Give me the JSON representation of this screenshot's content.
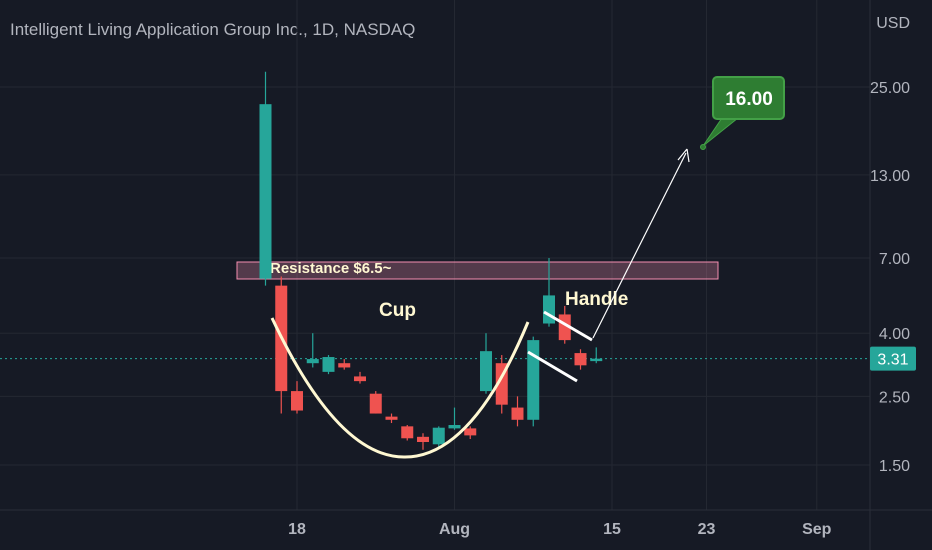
{
  "title": "Intelligent Living Application Group Inc., 1D, NASDAQ",
  "currency": "USD",
  "price_badge": "3.31",
  "target_label": "16.00",
  "annotations": {
    "resistance": "Resistance $6.5~",
    "cup": "Cup",
    "handle": "Handle"
  },
  "colors": {
    "background": "#161a25",
    "up": "#26a69a",
    "down": "#ef5350",
    "grid": "#242832",
    "axis_text": "#b2b5be",
    "annotation": "#fff8d2",
    "resistance_fill": "#f48fb1",
    "target_bg": "#2e7d32"
  },
  "chart_data": {
    "type": "candlestick",
    "title": "Intelligent Living Application Group Inc., 1D, NASDAQ",
    "y_scale": "log",
    "y_ticks": [
      "25.00",
      "13.00",
      "7.00",
      "4.00",
      "2.50",
      "1.50"
    ],
    "x_ticks": [
      "18",
      "Aug",
      "15",
      "23",
      "Sep"
    ],
    "last_price": 3.31,
    "resistance_price": 6.5,
    "target_price": 16.0,
    "candles": [
      {
        "date": "2022-07-14",
        "open": 6.0,
        "high": 28.0,
        "low": 5.7,
        "close": 22.0
      },
      {
        "date": "2022-07-15",
        "open": 5.7,
        "high": 6.1,
        "low": 2.2,
        "close": 2.6
      },
      {
        "date": "2022-07-18",
        "open": 2.6,
        "high": 2.8,
        "low": 2.2,
        "close": 2.25
      },
      {
        "date": "2022-07-19",
        "open": 3.2,
        "high": 4.0,
        "low": 3.1,
        "close": 3.3
      },
      {
        "date": "2022-07-20",
        "open": 3.0,
        "high": 3.4,
        "low": 2.95,
        "close": 3.35
      },
      {
        "date": "2022-07-21",
        "open": 3.2,
        "high": 3.3,
        "low": 3.05,
        "close": 3.1
      },
      {
        "date": "2022-07-22",
        "open": 2.9,
        "high": 3.0,
        "low": 2.75,
        "close": 2.8
      },
      {
        "date": "2022-07-25",
        "open": 2.55,
        "high": 2.6,
        "low": 2.2,
        "close": 2.2
      },
      {
        "date": "2022-07-26",
        "open": 2.15,
        "high": 2.2,
        "low": 2.05,
        "close": 2.1
      },
      {
        "date": "2022-07-27",
        "open": 2.0,
        "high": 2.02,
        "low": 1.8,
        "close": 1.83
      },
      {
        "date": "2022-07-28",
        "open": 1.85,
        "high": 1.9,
        "low": 1.68,
        "close": 1.78
      },
      {
        "date": "2022-07-29",
        "open": 1.75,
        "high": 2.0,
        "low": 1.7,
        "close": 1.98
      },
      {
        "date": "2022-08-01",
        "open": 1.97,
        "high": 2.3,
        "low": 1.95,
        "close": 2.02
      },
      {
        "date": "2022-08-02",
        "open": 1.97,
        "high": 2.0,
        "low": 1.82,
        "close": 1.87
      },
      {
        "date": "2022-08-03",
        "open": 2.6,
        "high": 4.0,
        "low": 2.55,
        "close": 3.5
      },
      {
        "date": "2022-08-04",
        "open": 3.2,
        "high": 3.4,
        "low": 2.2,
        "close": 2.35
      },
      {
        "date": "2022-08-05",
        "open": 2.3,
        "high": 2.5,
        "low": 2.0,
        "close": 2.1
      },
      {
        "date": "2022-08-08",
        "open": 2.1,
        "high": 3.9,
        "low": 2.0,
        "close": 3.8
      },
      {
        "date": "2022-08-09",
        "open": 4.3,
        "high": 7.0,
        "low": 4.2,
        "close": 5.3
      },
      {
        "date": "2022-08-10",
        "open": 4.6,
        "high": 4.9,
        "low": 3.7,
        "close": 3.8
      },
      {
        "date": "2022-08-11",
        "open": 3.45,
        "high": 3.55,
        "low": 3.05,
        "close": 3.15
      },
      {
        "date": "2022-08-12",
        "open": 3.25,
        "high": 3.6,
        "low": 3.2,
        "close": 3.31
      }
    ]
  }
}
